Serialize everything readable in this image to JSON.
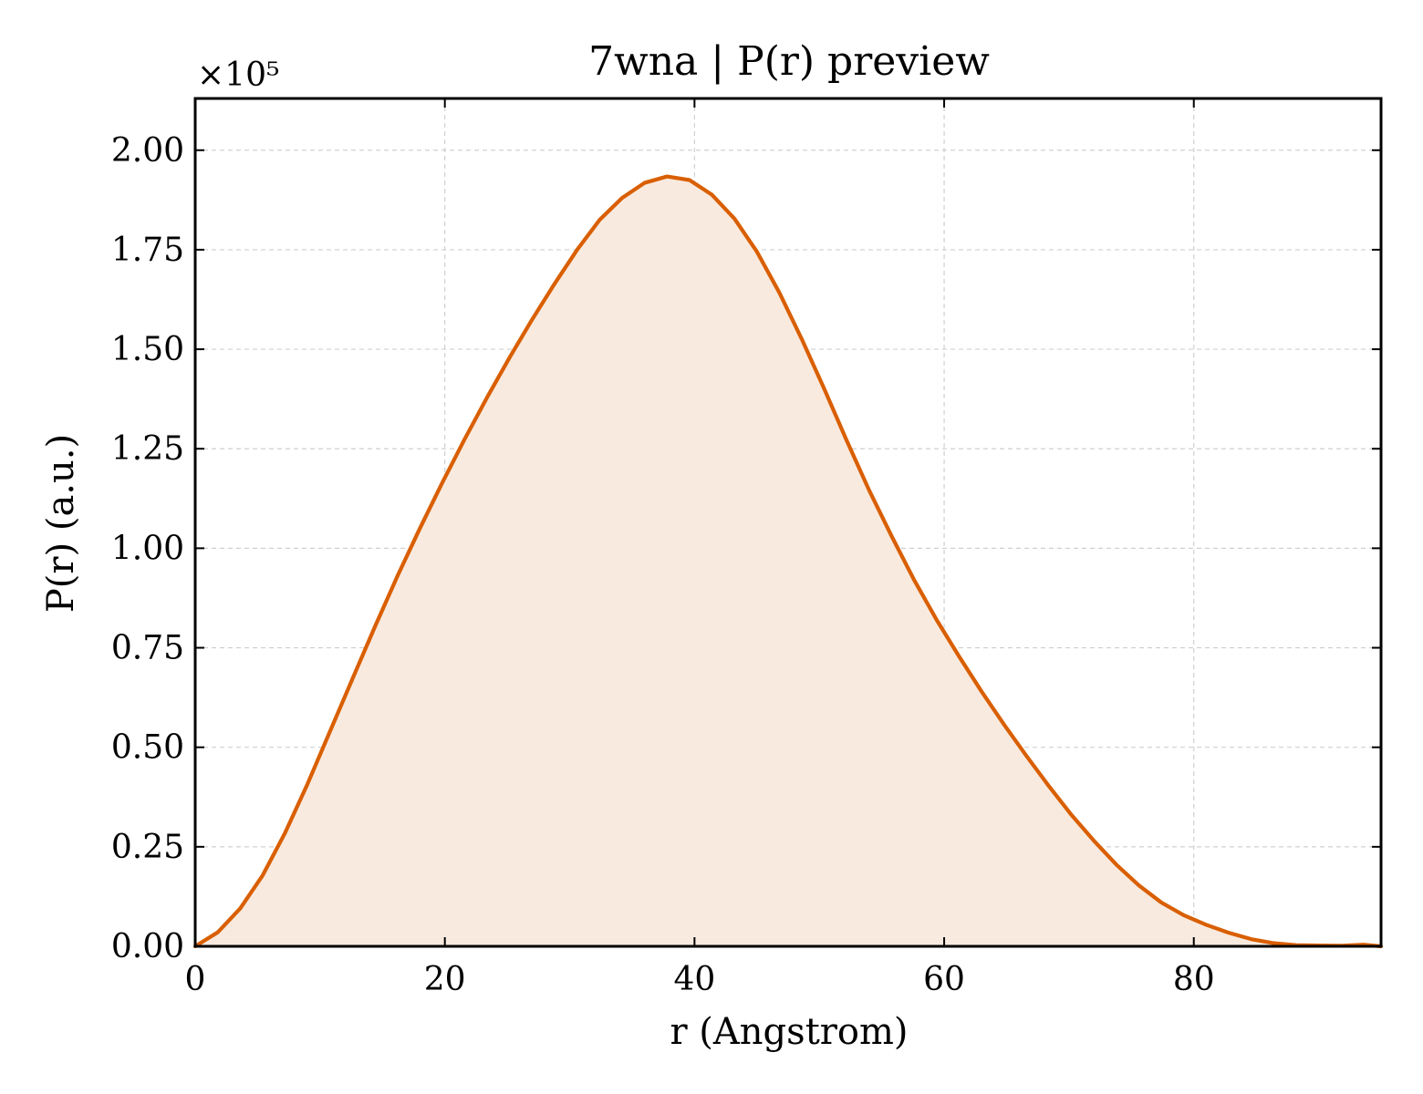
{
  "chart_data": {
    "type": "area",
    "title": "7wna | P(r) preview",
    "xlabel": "r (Angstrom)",
    "ylabel": "P(r) (a.u.)",
    "y_offset_text": "×10⁵",
    "y_scale": 100000,
    "xlim": [
      0,
      95
    ],
    "ylim": [
      0,
      2.13
    ],
    "x_ticks": [
      0,
      20,
      40,
      60,
      80
    ],
    "x_tick_labels": [
      "0",
      "20",
      "40",
      "60",
      "80"
    ],
    "y_ticks": [
      0,
      0.25,
      0.5,
      0.75,
      1.0,
      1.25,
      1.5,
      1.75,
      2.0
    ],
    "y_tick_labels": [
      "0.00",
      "0.25",
      "0.50",
      "0.75",
      "1.00",
      "1.25",
      "1.50",
      "1.75",
      "2.00"
    ],
    "grid": true,
    "line_color": "#d95f02",
    "fill_color": "#f9eadf",
    "x": [
      0,
      1.8,
      3.6,
      5.4,
      7.2,
      9.0,
      10.8,
      12.6,
      14.4,
      16.2,
      18.0,
      19.8,
      21.6,
      23.4,
      25.2,
      27.0,
      28.8,
      30.6,
      32.4,
      34.2,
      36.0,
      37.8,
      39.6,
      41.4,
      43.2,
      45.0,
      46.8,
      48.6,
      50.4,
      52.2,
      54.0,
      55.8,
      57.6,
      59.4,
      61.2,
      63.0,
      64.8,
      66.6,
      68.4,
      70.2,
      72.0,
      73.8,
      75.6,
      77.4,
      79.2,
      81.0,
      82.8,
      84.6,
      86.4,
      88.2,
      90.0,
      91.8,
      93.6,
      95.0
    ],
    "y": [
      0.0,
      0.035,
      0.095,
      0.178,
      0.285,
      0.408,
      0.54,
      0.672,
      0.803,
      0.93,
      1.05,
      1.165,
      1.275,
      1.38,
      1.48,
      1.575,
      1.665,
      1.75,
      1.825,
      1.88,
      1.918,
      1.934,
      1.925,
      1.888,
      1.828,
      1.745,
      1.642,
      1.525,
      1.4,
      1.27,
      1.145,
      1.03,
      0.92,
      0.82,
      0.728,
      0.64,
      0.557,
      0.478,
      0.402,
      0.33,
      0.265,
      0.205,
      0.153,
      0.11,
      0.078,
      0.054,
      0.034,
      0.018,
      0.008,
      0.003,
      0.002,
      0.0015,
      0.004,
      0.0
    ]
  }
}
